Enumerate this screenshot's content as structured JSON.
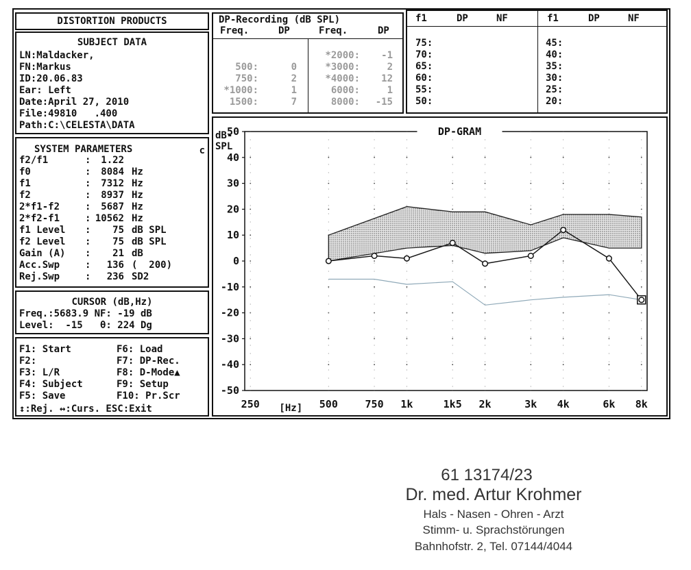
{
  "distortion_title": "DISTORTION PRODUCTS",
  "subject": {
    "heading": "SUBJECT DATA",
    "lines": [
      "LN:Maldacker,",
      "FN:Markus",
      "ID:20.06.83",
      "Ear: Left",
      "Date:April 27, 2010",
      "File:49810   .400",
      "Path:C:\\CELESTA\\DATA"
    ]
  },
  "system": {
    "heading": "SYSTEM PARAMETERS",
    "mark": "c",
    "rows": [
      {
        "label": "f2/f1",
        "sep": ":",
        "value": "1.22",
        "unit": ""
      },
      {
        "label": "f0",
        "sep": ":",
        "value": "8084",
        "unit": "Hz"
      },
      {
        "label": "f1",
        "sep": ":",
        "value": "7312",
        "unit": "Hz"
      },
      {
        "label": "f2",
        "sep": ":",
        "value": "8937",
        "unit": "Hz"
      },
      {
        "label": "2*f1-f2",
        "sep": ":",
        "value": "5687",
        "unit": "Hz"
      },
      {
        "label": "2*f2-f1",
        "sep": ":",
        "value": "10562",
        "unit": "Hz"
      },
      {
        "label": "f1 Level",
        "sep": ":",
        "value": "75",
        "unit": "dB SPL"
      },
      {
        "label": "f2 Level",
        "sep": ":",
        "value": "75",
        "unit": "dB SPL"
      },
      {
        "label": "Gain (A)",
        "sep": ":",
        "value": "21",
        "unit": "dB"
      },
      {
        "label": "Acc.Swp",
        "sep": ":",
        "value": "136",
        "unit": "(  200)"
      },
      {
        "label": "Rej.Swp",
        "sep": ":",
        "value": "236",
        "unit": "SD2"
      }
    ]
  },
  "cursor": {
    "heading": "CURSOR (dB,Hz)",
    "line1": "Freq.:5683.9 NF: -19 dB",
    "line2": "Level:  -15   θ: 224 Dg"
  },
  "keys": [
    {
      "left": "F1: Start",
      "right": "F6: Load"
    },
    {
      "left": "F2:",
      "right": "F7: DP-Rec."
    },
    {
      "left": "F3: L/R",
      "right": "F8: D-Mode▲"
    },
    {
      "left": "F4: Subject",
      "right": "F9: Setup"
    },
    {
      "left": "F5: Save",
      "right": "F10: Pr.Scr"
    }
  ],
  "keys_footer": "↕:Rej. ↔:Curs. ESC:Exit",
  "dp_recording": {
    "title": "DP-Recording (dB SPL)",
    "headers": [
      "Freq.",
      "DP",
      "Freq.",
      "DP"
    ],
    "left": [
      {
        "freq": "500:",
        "dp": "0"
      },
      {
        "freq": "750:",
        "dp": "2"
      },
      {
        "freq": "*1000:",
        "dp": "1"
      },
      {
        "freq": "1500:",
        "dp": "7"
      }
    ],
    "right": [
      {
        "freq": "*2000:",
        "dp": "-1"
      },
      {
        "freq": "*3000:",
        "dp": "2"
      },
      {
        "freq": "*4000:",
        "dp": "12"
      },
      {
        "freq": "6000:",
        "dp": "1"
      },
      {
        "freq": "8000:",
        "dp": "-15"
      }
    ]
  },
  "io_table": {
    "headers": [
      "f1",
      "DP",
      "NF",
      "f1",
      "DP",
      "NF"
    ],
    "left_levels": [
      "75:",
      "70:",
      "65:",
      "60:",
      "55:",
      "50:"
    ],
    "right_levels": [
      "45:",
      "40:",
      "35:",
      "30:",
      "25:",
      "20:"
    ]
  },
  "chart_data": {
    "type": "line",
    "title": "DP-GRAM",
    "ylabel": "dB-SPL",
    "xlabel": "[Hz]",
    "x_tick_labels": [
      "250",
      "500",
      "750",
      "1k",
      "1k5",
      "2k",
      "3k",
      "4k",
      "6k",
      "8k"
    ],
    "x_tick_values": [
      250,
      500,
      750,
      1000,
      1500,
      2000,
      3000,
      4000,
      6000,
      8000
    ],
    "x_scale": "log",
    "ylim": [
      -50,
      50
    ],
    "y_ticks": [
      50,
      40,
      30,
      20,
      10,
      0,
      -10,
      -20,
      -30,
      -40,
      -50
    ],
    "grid": "dotted",
    "series": [
      {
        "kind": "dp",
        "x": [
          500,
          750,
          1000,
          1500,
          2000,
          3000,
          4000,
          6000,
          8000
        ],
        "y": [
          0,
          2,
          1,
          7,
          -1,
          2,
          12,
          1,
          -15
        ]
      },
      {
        "kind": "norm_upper",
        "x": [
          500,
          1000,
          1500,
          2000,
          3000,
          4000,
          6000,
          8000
        ],
        "y": [
          10,
          21,
          19,
          19,
          14,
          18,
          18,
          17
        ]
      },
      {
        "kind": "norm_lower",
        "x": [
          500,
          1000,
          1500,
          2000,
          3000,
          4000,
          6000,
          8000
        ],
        "y": [
          0,
          5,
          6,
          3,
          4,
          9,
          5,
          5
        ]
      },
      {
        "kind": "noise_floor",
        "x": [
          500,
          750,
          1000,
          1500,
          2000,
          3000,
          4000,
          6000,
          8000
        ],
        "y": [
          -7,
          -7,
          -9,
          -8,
          -17,
          -15,
          -14,
          -13,
          -15
        ]
      }
    ],
    "colors": {
      "dp": "#1a1a1a",
      "noise_floor": "#8fa9b8",
      "band_fill": "#bfbfbf"
    }
  },
  "stamp": {
    "number": "61 13174/23",
    "name": "Dr. med. Artur Krohmer",
    "line1": "Hals - Nasen - Ohren - Arzt",
    "line2": "Stimm- u. Sprachstörungen",
    "line3": "Bahnhofstr. 2, Tel. 07144/4044"
  }
}
